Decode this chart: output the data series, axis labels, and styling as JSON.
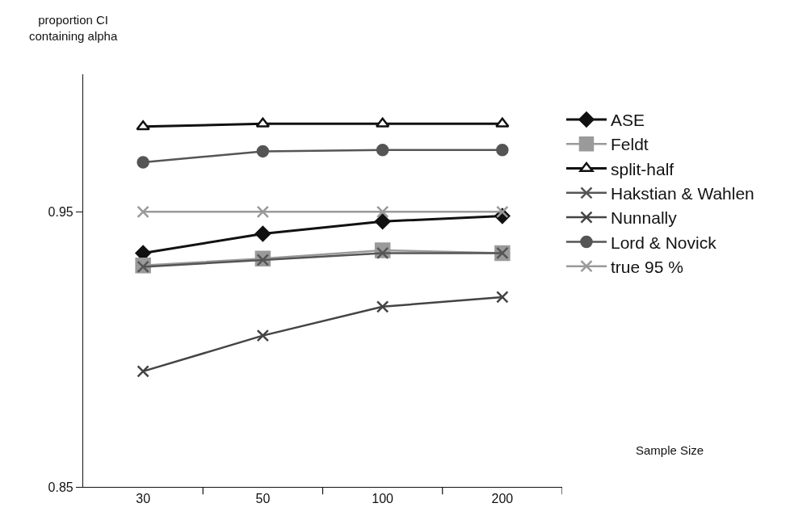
{
  "chart_data": {
    "type": "line",
    "annotations": [
      "Sample Size"
    ],
    "ylabel": "proportion CI\ncontaining alpha",
    "categories": [
      "30",
      "50",
      "100",
      "200"
    ],
    "ylim": [
      0.85,
      1.0
    ],
    "yticks": [
      0.85,
      0.95
    ],
    "legend": "right",
    "series": [
      {
        "name": "ASE",
        "color": "#111111",
        "marker": "diamond",
        "values": [
          0.935,
          0.942,
          0.9465,
          0.9485
        ]
      },
      {
        "name": "Feldt",
        "color": "#9a9a9a",
        "marker": "square",
        "values": [
          0.9305,
          0.933,
          0.936,
          0.935
        ]
      },
      {
        "name": "split-half",
        "color": "#111111",
        "marker": "triangle",
        "values": [
          0.981,
          0.982,
          0.982,
          0.982
        ]
      },
      {
        "name": "Hakstian & Wahlen",
        "color": "#555555",
        "marker": "cross",
        "values": [
          0.93,
          0.9325,
          0.935,
          0.935
        ]
      },
      {
        "name": "Nunnally",
        "color": "#444444",
        "marker": "cross",
        "values": [
          0.892,
          0.905,
          0.9155,
          0.919
        ]
      },
      {
        "name": "Lord & Novick",
        "color": "#555555",
        "marker": "circle",
        "values": [
          0.968,
          0.972,
          0.9725,
          0.9725
        ]
      },
      {
        "name": "true 95 %",
        "color": "#9a9a9a",
        "marker": "cross",
        "values": [
          0.95,
          0.95,
          0.95,
          0.95
        ]
      }
    ]
  }
}
